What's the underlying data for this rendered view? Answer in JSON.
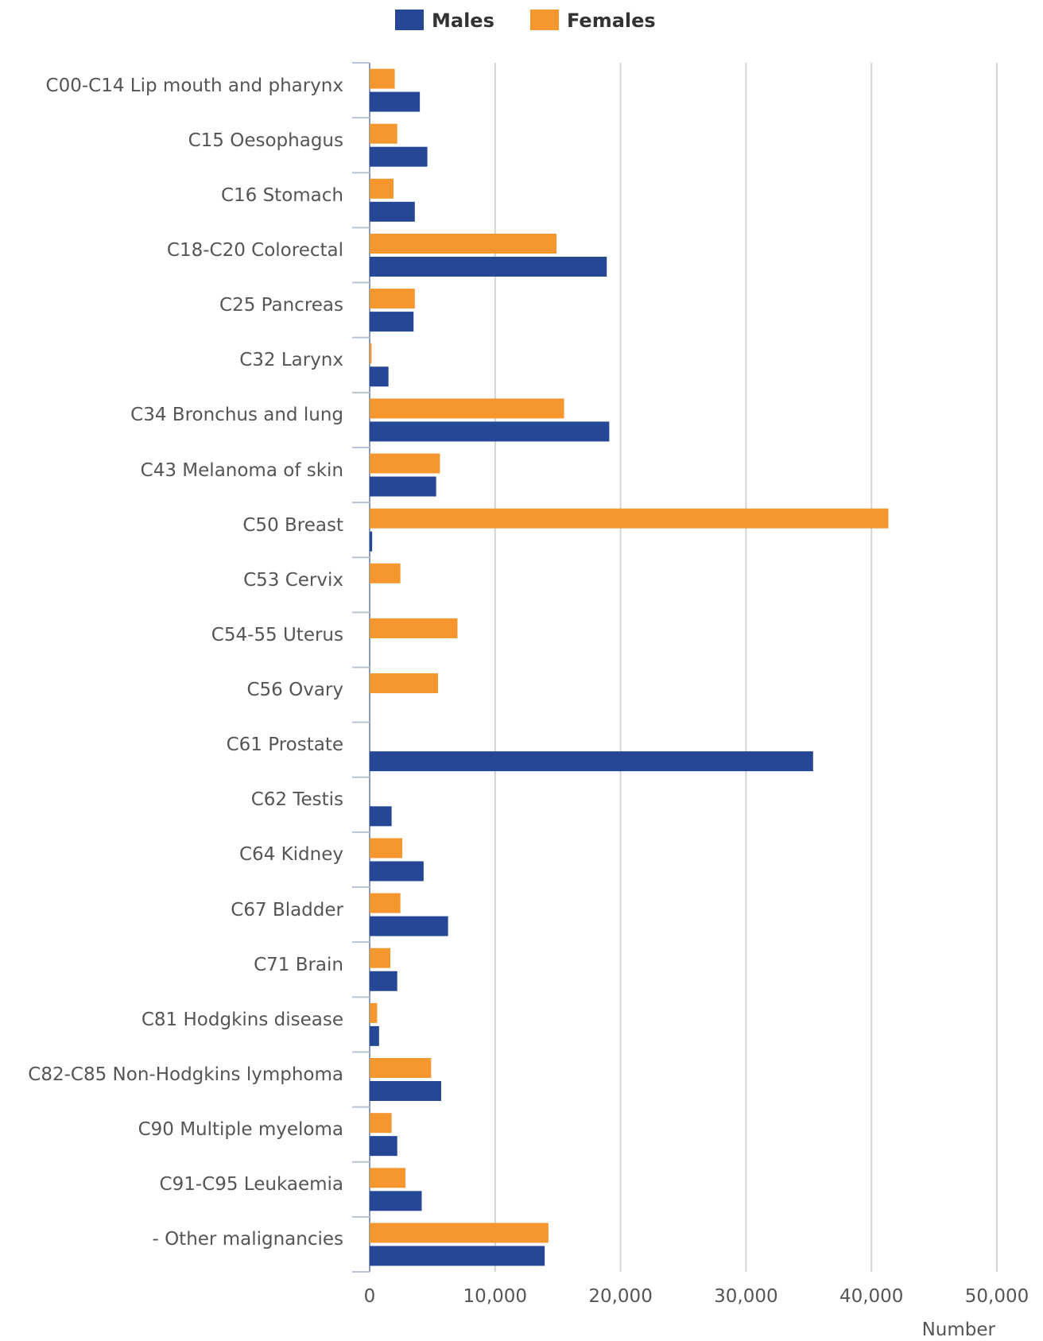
{
  "chart_data": {
    "type": "barh",
    "x_label": "Number",
    "categories": [
      "C00-C14 Lip mouth and pharynx",
      "C15 Oesophagus",
      "C16 Stomach",
      "C18-C20 Colorectal",
      "C25 Pancreas",
      "C32 Larynx",
      "C34 Bronchus and lung",
      "C43 Melanoma of skin",
      "C50 Breast",
      "C53 Cervix",
      "C54-55 Uterus",
      "C56 Ovary",
      "C61 Prostate",
      "C62 Testis",
      "C64 Kidney",
      "C67 Bladder",
      "C71 Brain",
      "C81 Hodgkins disease",
      "C82-C85 Non-Hodgkins lymphoma",
      "C90 Multiple myeloma",
      "C91-C95 Leukaemia",
      "- Other malignancies"
    ],
    "series": [
      {
        "name": "Males",
        "color": "#264796",
        "values": [
          4000,
          4600,
          3600,
          18900,
          3500,
          1500,
          19100,
          5300,
          200,
          0,
          0,
          0,
          35350,
          1750,
          4300,
          6250,
          2200,
          750,
          5700,
          2200,
          4150,
          13950
        ]
      },
      {
        "name": "Females",
        "color": "#f5962f",
        "values": [
          2000,
          2200,
          1900,
          14900,
          3600,
          150,
          15500,
          5600,
          41350,
          2450,
          7000,
          5450,
          0,
          0,
          2600,
          2450,
          1650,
          600,
          4900,
          1750,
          2850,
          14250
        ]
      }
    ],
    "xlim": [
      0,
      50000
    ],
    "xticks": [
      0,
      {
        "value": 10000,
        "label": "10,000"
      },
      {
        "value": 20000,
        "label": "20,000"
      },
      {
        "value": 30000,
        "label": "30,000"
      },
      {
        "value": 40000,
        "label": "40,000"
      },
      {
        "value": 50000,
        "label": "50,000"
      }
    ],
    "grid": true
  }
}
